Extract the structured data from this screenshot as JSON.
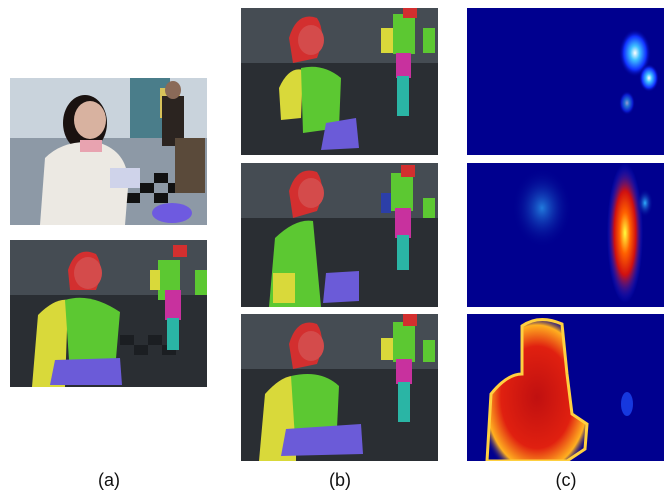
{
  "figure": {
    "captions": [
      "(a)",
      "(b)",
      "(c)"
    ],
    "colors": {
      "background": "#ffffff",
      "hair": "#d32f2f",
      "face": "#e05050",
      "torso_green": "#5cc832",
      "arm_yellow": "#d9d93a",
      "hands_purple": "#6b5bd8",
      "legs_teal": "#2ab5a5",
      "skirt_magenta": "#c8319e",
      "heatmap_low": "#00008f",
      "heatmap_high": "#ff2000"
    }
  }
}
